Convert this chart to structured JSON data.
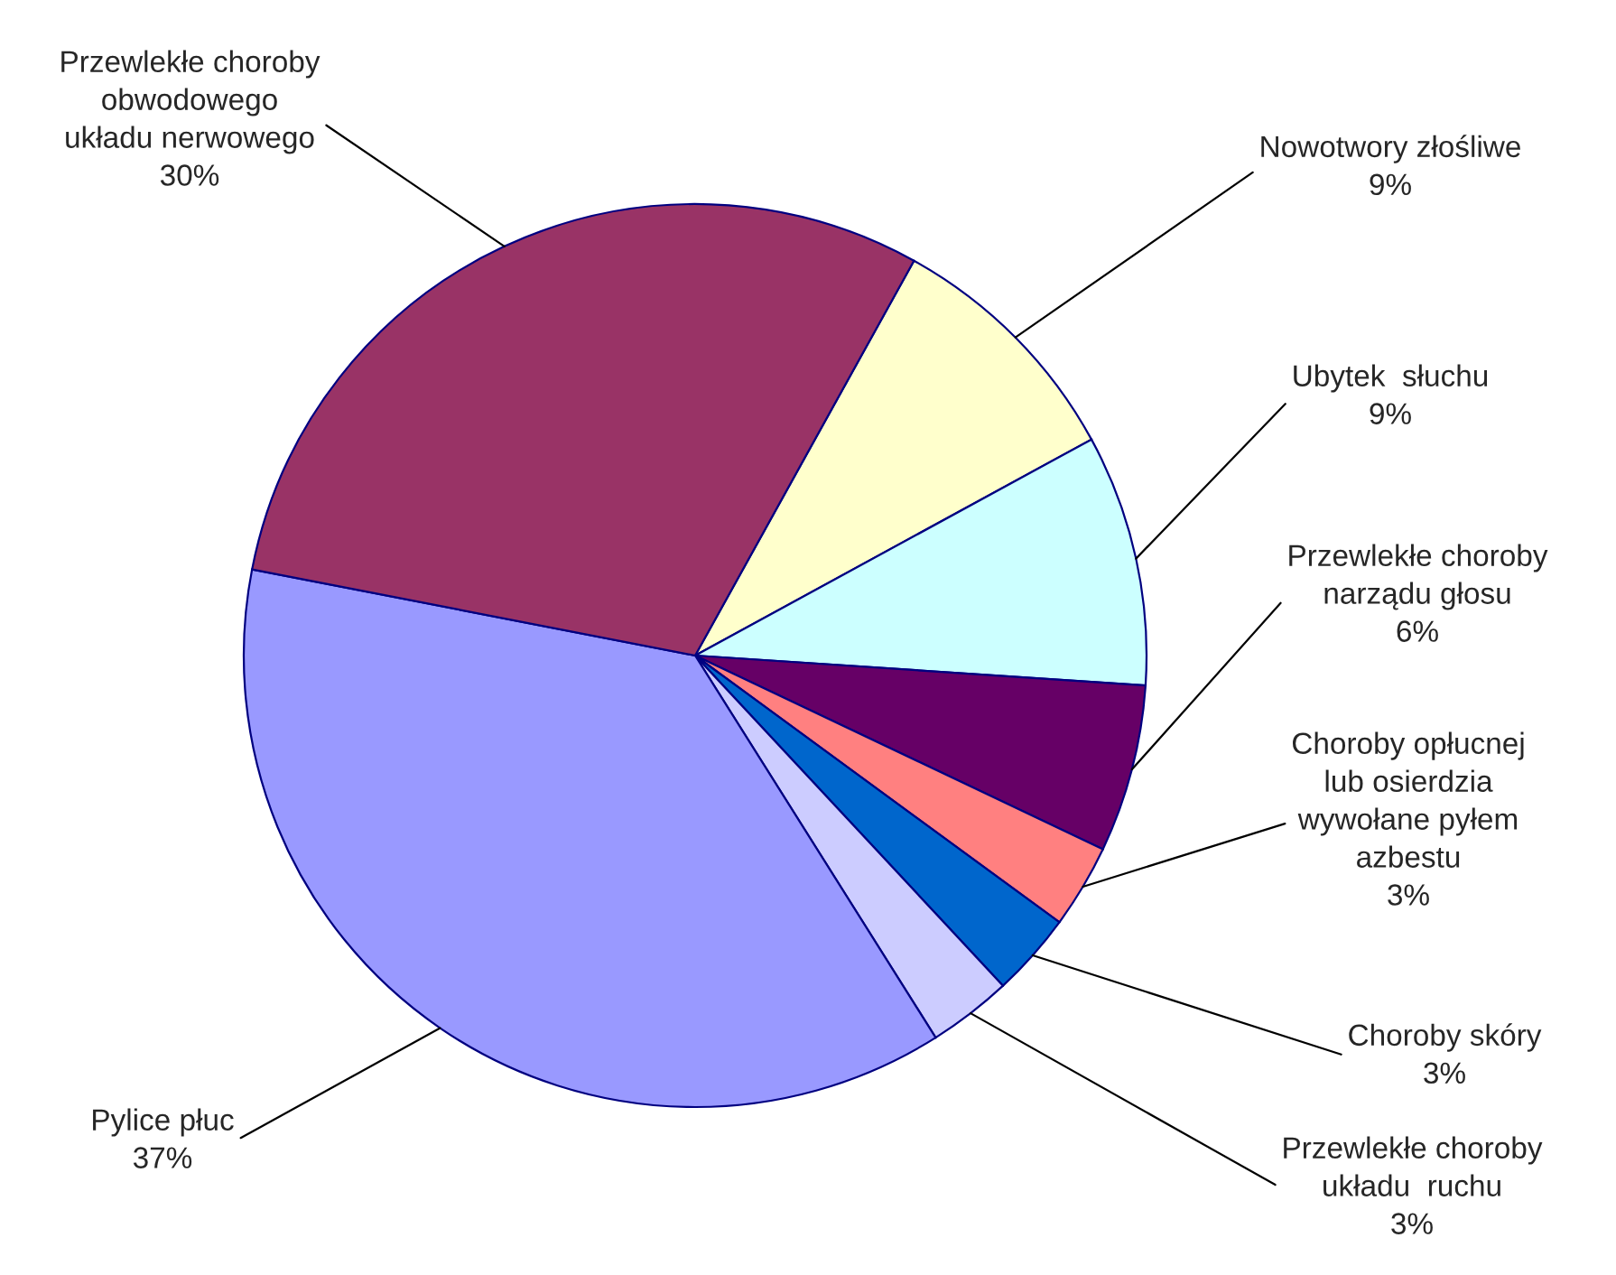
{
  "chart_data": {
    "type": "pie",
    "categories": [
      "Nowotwory złośliwe",
      "Ubytek  słuchu",
      "Przewlekłe choroby\nnarządu głosu",
      "Choroby opłucnej\nlub osierdzia\nwywołane pyłem\nazbestu",
      "Choroby skóry",
      "Przewlekłe choroby\nukładu  ruchu",
      "Pylice płuc",
      "Przewlekłe choroby\nobwodowego\nukładu nerwowego"
    ],
    "values": [
      9,
      9,
      6,
      3,
      3,
      3,
      37,
      30
    ],
    "value_labels": [
      "9%",
      "9%",
      "6%",
      "3%",
      "3%",
      "3%",
      "37%",
      "30%"
    ],
    "colors": [
      "#ffffcc",
      "#ccffff",
      "#660066",
      "#ff8080",
      "#0066cc",
      "#ccccff",
      "#9999ff",
      "#993366"
    ]
  }
}
